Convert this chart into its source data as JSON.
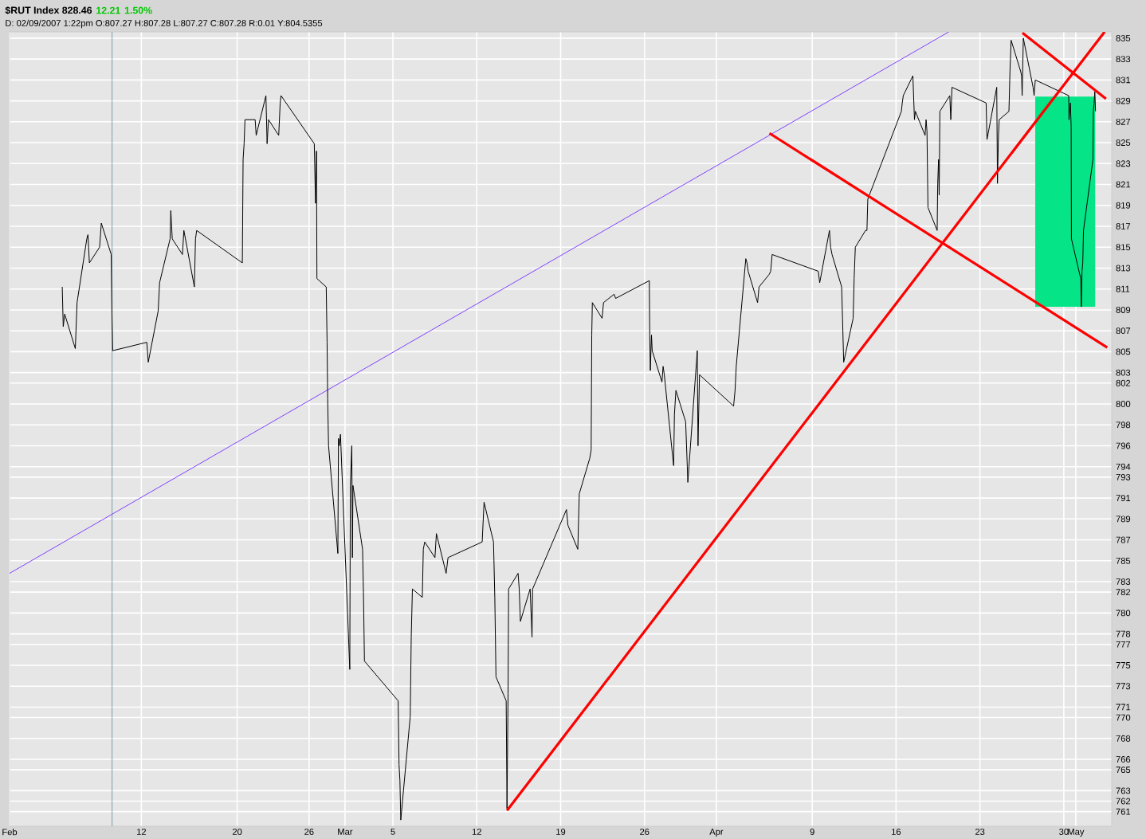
{
  "chart_data": {
    "type": "line",
    "title": "$RUT Index 828.46",
    "subtitle": "D: 02/09/2007 1:22pm O:807.27 H:807.28 L:807.27 C:807.28 R:0.01 Y:804.5355",
    "annotations": [
      "12.21",
      "1.50%"
    ],
    "xlim": [
      "2007-02-01",
      "2007-05-04"
    ],
    "ylim": [
      759.6,
      835.6
    ],
    "xticks": [
      {
        "value": "2007-02-01",
        "label": "Feb"
      },
      {
        "value": "2007-02-12",
        "label": "12"
      },
      {
        "value": "2007-02-20",
        "label": "20"
      },
      {
        "value": "2007-02-26",
        "label": "26"
      },
      {
        "value": "2007-03-01",
        "label": "Mar"
      },
      {
        "value": "2007-03-05",
        "label": "5"
      },
      {
        "value": "2007-03-12",
        "label": "12"
      },
      {
        "value": "2007-03-19",
        "label": "19"
      },
      {
        "value": "2007-03-26",
        "label": "26"
      },
      {
        "value": "2007-04-01",
        "label": "Apr"
      },
      {
        "value": "2007-04-09",
        "label": "9"
      },
      {
        "value": "2007-04-16",
        "label": "16"
      },
      {
        "value": "2007-04-23",
        "label": "23"
      },
      {
        "value": "2007-04-30",
        "label": "30"
      },
      {
        "value": "2007-05-01",
        "label": "May"
      }
    ],
    "yticks": [
      835,
      833,
      831,
      829,
      827,
      825,
      823,
      821,
      819,
      817,
      815,
      813,
      811,
      809,
      807,
      805,
      803,
      802,
      800,
      798,
      796,
      794,
      793,
      791,
      789,
      787,
      785,
      783,
      782,
      780,
      778,
      777,
      775,
      773,
      771,
      770,
      768,
      766,
      765,
      763,
      762,
      761
    ],
    "grid": true,
    "ref_lines": [
      {
        "axis": "x",
        "value": "2007-02-09T13:22",
        "color": "#7a9fa6"
      }
    ],
    "series": [
      {
        "type": "bar",
        "color": "#05e487",
        "x": [
          "2007-04-30T02:46"
        ],
        "base": [
          809.3
        ],
        "values": [
          20.1
        ]
      },
      {
        "color": "#8040ff",
        "x": [
          "2007-02-01T00:00",
          "2007-04-20T09:34"
        ],
        "values": [
          783.8,
          835.6
        ]
      },
      {
        "color": "#000000",
        "x": [
          "2007-02-05T09:30",
          "2007-02-05T11:31",
          "2007-02-05T14:26",
          "2007-02-06T11:43",
          "2007-02-06T15:13",
          "2007-02-07T10:44",
          "2007-02-07T13:01",
          "2007-02-07T15:56",
          "2007-02-08T12:22",
          "2007-02-08T15:48",
          "2007-02-09T11:39",
          "2007-02-09T13:05",
          "2007-02-09T14:34",
          "2007-02-12T10:56",
          "2007-02-12T13:51",
          "2007-02-13T09:42",
          "2007-02-13T12:33",
          "2007-02-14T09:34",
          "2007-02-14T11:00",
          "2007-02-14T13:55",
          "2007-02-15T10:21",
          "2007-02-15T13:12",
          "2007-02-16T10:13",
          "2007-02-16T12:29",
          "2007-02-16T14:50",
          "2007-02-20T10:21",
          "2007-02-20T11:50",
          "2007-02-20T13:51",
          "2007-02-20T15:37",
          "2007-02-21T11:58",
          "2007-02-21T14:03",
          "2007-02-22T09:34",
          "2007-02-22T11:54",
          "2007-02-22T14:46",
          "2007-02-23T11:11",
          "2007-02-23T14:07",
          "2007-02-23T15:48",
          "2007-02-26T10:29",
          "2007-02-26T12:49",
          "2007-02-26T14:50",
          "2007-02-26T15:44",
          "2007-02-27T10:21",
          "2007-02-27T12:06",
          "2007-02-27T13:16",
          "2007-02-27T15:02",
          "2007-02-28T09:42",
          "2007-02-28T10:52",
          "2007-02-28T12:33",
          "2007-02-28T14:54",
          "2007-03-01T09:34",
          "2007-03-01T10:44",
          "2007-03-01T13:36",
          "2007-03-01T14:46",
          "2007-03-01T15:56",
          "2007-03-02T11:11",
          "2007-03-02T12:57",
          "2007-03-02T14:58",
          "2007-03-05T10:29",
          "2007-03-05T12:14",
          "2007-03-05T13:59",
          "2007-03-05T15:44",
          "2007-03-06T10:40",
          "2007-03-06T12:41",
          "2007-03-06T15:02",
          "2007-03-07T10:52",
          "2007-03-07T12:53",
          "2007-03-07T15:44",
          "2007-03-08T12:10",
          "2007-03-08T15:05",
          "2007-03-09T10:36",
          "2007-03-09T14:23",
          "2007-03-12T10:48",
          "2007-03-12T14:34",
          "2007-03-13T09:30",
          "2007-03-13T12:06",
          "2007-03-13T14:26",
          "2007-03-14T10:52",
          "2007-03-14T12:33",
          "2007-03-14T14:38",
          "2007-03-14T15:44",
          "2007-03-15T10:44",
          "2007-03-15T13:01",
          "2007-03-15T15:21",
          "2007-03-16T10:52",
          "2007-03-16T14:38",
          "2007-03-16T15:48",
          "2007-03-19T11:39",
          "2007-03-19T14:34",
          "2007-03-20T10:21",
          "2007-03-20T13:16",
          "2007-03-21T10:17",
          "2007-03-21T13:08",
          "2007-03-21T14:19",
          "2007-03-21T15:29",
          "2007-03-22T11:00",
          "2007-03-22T13:55",
          "2007-03-23T11:11",
          "2007-03-23T14:07",
          "2007-03-26T09:38",
          "2007-03-26T10:29",
          "2007-03-26T11:39",
          "2007-03-26T13:59",
          "2007-03-26T15:25",
          "2007-03-27T10:56",
          "2007-03-27T13:16",
          "2007-03-27T15:37",
          "2007-03-28T10:17",
          "2007-03-28T11:58",
          "2007-03-28T14:54",
          "2007-03-29T10:25",
          "2007-03-29T13:20",
          "2007-03-29T14:46",
          "2007-03-30T09:46",
          "2007-03-30T11:11",
          "2007-03-30T14:07",
          "2007-04-02T10:29",
          "2007-04-02T13:24",
          "2007-04-02T15:44",
          "2007-04-03T10:56",
          "2007-04-03T13:16",
          "2007-04-03T15:37",
          "2007-04-04T10:32",
          "2007-04-04T13:28",
          "2007-04-05T09:50",
          "2007-04-05T12:45",
          "2007-04-05T15:41",
          "2007-04-09T12:02",
          "2007-04-09T14:58",
          "2007-04-10T10:29",
          "2007-04-10T12:49",
          "2007-04-10T15:44",
          "2007-04-11T10:56",
          "2007-04-11T12:41",
          "2007-04-11T15:02",
          "2007-04-12T09:57",
          "2007-04-12T11:58",
          "2007-04-12T14:19",
          "2007-04-13T10:44",
          "2007-04-13T13:36",
          "2007-04-13T15:21",
          "2007-04-16T10:36",
          "2007-04-16T12:22",
          "2007-04-16T14:23",
          "2007-04-17T09:38",
          "2007-04-17T11:04",
          "2007-04-17T12:49",
          "2007-04-17T14:34",
          "2007-04-18T10:05",
          "2007-04-18T12:06",
          "2007-04-18T13:51",
          "2007-04-18T15:52",
          "2007-04-19T10:17",
          "2007-04-19T11:23",
          "2007-04-19T13:08",
          "2007-04-19T14:19",
          "2007-04-19T15:44",
          "2007-04-20T11:35",
          "2007-04-20T13:36",
          "2007-04-20T15:56",
          "2007-04-23T12:22",
          "2007-04-23T14:07",
          "2007-04-24T09:38",
          "2007-04-24T11:04",
          "2007-04-24T13:05",
          "2007-04-24T14:34",
          "2007-04-25T10:05",
          "2007-04-25T12:06",
          "2007-04-25T14:26",
          "2007-04-26T09:42",
          "2007-04-26T11:23",
          "2007-04-26T12:33",
          "2007-04-26T14:54",
          "2007-04-27T10:25",
          "2007-04-27T12:29",
          "2007-04-27T14:50",
          "2007-04-30T09:46",
          "2007-04-30T10:21",
          "2007-04-30T13:12",
          "2007-04-30T14:42",
          "2007-04-30T15:13",
          "2007-05-01T09:53",
          "2007-05-01T11:04",
          "2007-05-01T12:29",
          "2007-05-01T13:59",
          "2007-05-01T15:25",
          "2007-05-02T10:21",
          "2007-05-02T11:15",
          "2007-05-02T12:41",
          "2007-05-02T14:07",
          "2007-05-02T15:33"
        ],
        "values": [
          811.2,
          807.4,
          808.6,
          805.3,
          809.7,
          815.8,
          816.2,
          813.5,
          815.0,
          817.3,
          814.3,
          808.6,
          805.1,
          805.9,
          804.0,
          808.9,
          811.6,
          815.8,
          818.5,
          815.8,
          814.3,
          816.6,
          811.2,
          815.8,
          816.6,
          813.5,
          823.4,
          824.9,
          827.2,
          827.2,
          825.7,
          829.5,
          824.9,
          827.2,
          825.7,
          828.8,
          829.5,
          824.9,
          819.2,
          824.2,
          812.0,
          811.2,
          805.9,
          800.5,
          796.0,
          785.7,
          796.7,
          796.0,
          797.1,
          774.6,
          792.2,
          796.0,
          785.3,
          792.2,
          786.1,
          781.9,
          775.4,
          771.6,
          765.5,
          764.0,
          760.2,
          770.1,
          777.7,
          782.3,
          781.5,
          786.1,
          786.8,
          785.3,
          787.6,
          783.8,
          785.3,
          786.8,
          790.6,
          786.8,
          781.5,
          773.9,
          771.6,
          761.3,
          772.3,
          782.3,
          783.8,
          782.3,
          779.2,
          782.3,
          777.7,
          782.3,
          789.9,
          788.4,
          786.1,
          791.4,
          794.8,
          795.6,
          806.6,
          809.7,
          808.2,
          809.7,
          810.5,
          810.1,
          811.8,
          806.6,
          803.2,
          806.6,
          805.1,
          802.1,
          803.6,
          802.8,
          794.1,
          799.0,
          801.3,
          798.3,
          794.5,
          792.5,
          805.1,
          796.0,
          802.8,
          799.8,
          801.3,
          803.6,
          813.9,
          813.5,
          812.7,
          809.7,
          811.2,
          812.4,
          812.7,
          814.3,
          812.7,
          811.6,
          816.6,
          815.0,
          814.3,
          811.2,
          808.2,
          804.0,
          808.2,
          812.0,
          815.0,
          816.6,
          816.6,
          819.6,
          828.0,
          828.8,
          829.5,
          831.4,
          829.5,
          827.2,
          828.0,
          825.7,
          827.2,
          826.1,
          818.8,
          816.6,
          821.1,
          823.4,
          820.0,
          828.0,
          829.5,
          827.2,
          830.3,
          828.8,
          825.3,
          830.3,
          821.1,
          825.7,
          827.2,
          828.0,
          831.8,
          834.8,
          831.8,
          831.4,
          829.5,
          835.0,
          830.3,
          829.5,
          831.0,
          829.5,
          827.2,
          828.8,
          826.5,
          815.8,
          812.0,
          809.3,
          812.7,
          813.5,
          816.6,
          823.4,
          828.0,
          828.8,
          829.9,
          828.0
        ]
      },
      {
        "color": "#ff0000",
        "x": [
          "2007-03-14T12:33",
          "2007-05-03T09:42"
        ],
        "values": [
          761.1,
          835.6
        ]
      },
      {
        "color": "#ff0000",
        "x": [
          "2007-04-05T10:25",
          "2007-05-03T14:54"
        ],
        "values": [
          825.9,
          805.4
        ]
      },
      {
        "color": "#ff0000",
        "x": [
          "2007-04-26T13:08",
          "2007-05-03T12:33"
        ],
        "values": [
          835.5,
          829.2
        ]
      }
    ]
  }
}
